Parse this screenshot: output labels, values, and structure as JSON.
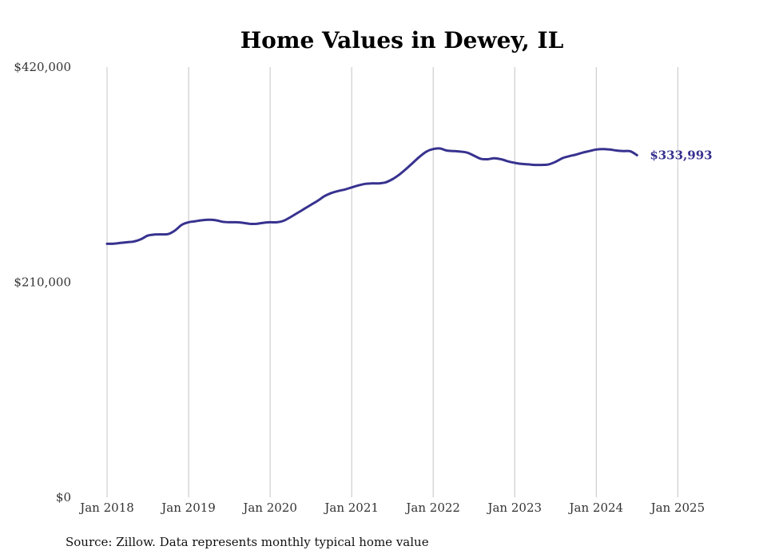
{
  "chart_data": {
    "type": "line",
    "title": "Home Values in Dewey, IL",
    "source": "Source: Zillow. Data represents monthly typical home value",
    "xlabel": "",
    "ylabel": "",
    "ylim": [
      0,
      420000
    ],
    "yticks": [
      {
        "value": 0,
        "label": "$0"
      },
      {
        "value": 210000,
        "label": "$210,000"
      },
      {
        "value": 420000,
        "label": "$420,000"
      }
    ],
    "xticks": [
      {
        "value": "2018-01",
        "label": "Jan 2018"
      },
      {
        "value": "2019-01",
        "label": "Jan 2019"
      },
      {
        "value": "2020-01",
        "label": "Jan 2020"
      },
      {
        "value": "2021-01",
        "label": "Jan 2021"
      },
      {
        "value": "2022-01",
        "label": "Jan 2022"
      },
      {
        "value": "2023-01",
        "label": "Jan 2023"
      },
      {
        "value": "2024-01",
        "label": "Jan 2024"
      },
      {
        "value": "2025-01",
        "label": "Jan 2025"
      }
    ],
    "grid": "vertical",
    "line_color": "#37328f",
    "end_label": "$333,993",
    "series": [
      {
        "points": [
          [
            "2018-01",
            247500
          ],
          [
            "2018-02",
            247600
          ],
          [
            "2018-03",
            248300
          ],
          [
            "2018-04",
            249000
          ],
          [
            "2018-05",
            249800
          ],
          [
            "2018-06",
            252000
          ],
          [
            "2018-07",
            255500
          ],
          [
            "2018-08",
            256500
          ],
          [
            "2018-09",
            256700
          ],
          [
            "2018-10",
            257000
          ],
          [
            "2018-11",
            260500
          ],
          [
            "2018-12",
            266000
          ],
          [
            "2019-01",
            268500
          ],
          [
            "2019-02",
            269500
          ],
          [
            "2019-03",
            270500
          ],
          [
            "2019-04",
            271000
          ],
          [
            "2019-05",
            270500
          ],
          [
            "2019-06",
            269000
          ],
          [
            "2019-07",
            268500
          ],
          [
            "2019-08",
            268500
          ],
          [
            "2019-09",
            268000
          ],
          [
            "2019-10",
            267000
          ],
          [
            "2019-11",
            267000
          ],
          [
            "2019-12",
            268000
          ],
          [
            "2020-01",
            268500
          ],
          [
            "2020-02",
            268500
          ],
          [
            "2020-03",
            270000
          ],
          [
            "2020-04",
            273500
          ],
          [
            "2020-05",
            277500
          ],
          [
            "2020-06",
            281500
          ],
          [
            "2020-07",
            285500
          ],
          [
            "2020-08",
            289500
          ],
          [
            "2020-09",
            294000
          ],
          [
            "2020-10",
            297000
          ],
          [
            "2020-11",
            299000
          ],
          [
            "2020-12",
            300500
          ],
          [
            "2021-01",
            302500
          ],
          [
            "2021-02",
            304500
          ],
          [
            "2021-03",
            306000
          ],
          [
            "2021-04",
            306500
          ],
          [
            "2021-05",
            306500
          ],
          [
            "2021-06",
            307500
          ],
          [
            "2021-07",
            310500
          ],
          [
            "2021-08",
            315000
          ],
          [
            "2021-09",
            320500
          ],
          [
            "2021-10",
            326500
          ],
          [
            "2021-11",
            332500
          ],
          [
            "2021-12",
            337500
          ],
          [
            "2022-01",
            340000
          ],
          [
            "2022-02",
            340500
          ],
          [
            "2022-03",
            338500
          ],
          [
            "2022-04",
            338000
          ],
          [
            "2022-05",
            337500
          ],
          [
            "2022-06",
            336500
          ],
          [
            "2022-07",
            333500
          ],
          [
            "2022-08",
            330500
          ],
          [
            "2022-09",
            330000
          ],
          [
            "2022-10",
            331000
          ],
          [
            "2022-11",
            330000
          ],
          [
            "2022-12",
            328000
          ],
          [
            "2023-01",
            326500
          ],
          [
            "2023-02",
            325500
          ],
          [
            "2023-03",
            325000
          ],
          [
            "2023-04",
            324500
          ],
          [
            "2023-05",
            324500
          ],
          [
            "2023-06",
            325000
          ],
          [
            "2023-07",
            327500
          ],
          [
            "2023-08",
            331000
          ],
          [
            "2023-09",
            333000
          ],
          [
            "2023-10",
            334500
          ],
          [
            "2023-11",
            336500
          ],
          [
            "2023-12",
            338000
          ],
          [
            "2024-01",
            339500
          ],
          [
            "2024-02",
            340000
          ],
          [
            "2024-03",
            339500
          ],
          [
            "2024-04",
            338500
          ],
          [
            "2024-05",
            338000
          ],
          [
            "2024-06",
            337800
          ],
          [
            "2024-07",
            333993
          ]
        ]
      }
    ]
  }
}
